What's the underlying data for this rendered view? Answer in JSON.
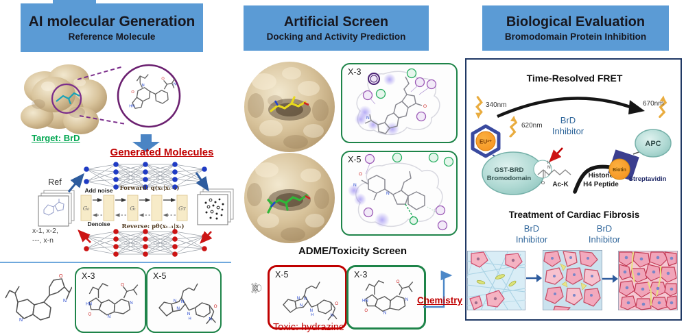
{
  "colors": {
    "header_bg": "#5B9BD5",
    "accent_red": "#C00000",
    "accent_green": "#00A650",
    "accent_blue": "#31679B",
    "box_green": "#1E8449"
  },
  "panels": {
    "left": {
      "title": "AI molecular Generation",
      "subtitle": "Reference Molecule",
      "target_label": "Target: BrD",
      "generated_label": "Generated Molecules",
      "diffusion": {
        "ref_label": "Ref",
        "input_seq_line1": "x-1, x-2,",
        "input_seq_line2": "---, x-n",
        "add_noise": "Add noise",
        "denoise": "Denoise",
        "forward": "Forward: q(xₜ|xₜ₋₁)",
        "reverse": "Reverse: pθ(xₜ₋₁|xₜ)",
        "g_labels": [
          "G₀",
          "Gₜ",
          "Gᴛ"
        ]
      },
      "candidates": [
        {
          "label": "X-3"
        },
        {
          "label": "X-5"
        }
      ]
    },
    "middle": {
      "title": "Artificial Screen",
      "subtitle": "Docking and Activity Prediction",
      "interactions": [
        {
          "label": "X-3"
        },
        {
          "label": "X-5"
        }
      ],
      "adme_title": "ADME/Toxicity Screen",
      "toxic": {
        "label": "X-5",
        "note": "Toxic: hydrazine"
      },
      "passed": {
        "label": "X-3"
      },
      "chemistry_label": "Chemistry"
    },
    "right": {
      "title": "Biological Evaluation",
      "subtitle": "Bromodomain Protein Inhibition",
      "fret": {
        "title": "Time-Resolved FRET",
        "excitation": "340nm",
        "donor_emission": "620nm",
        "acceptor_emission": "670nm",
        "europium": "EU³⁺",
        "gst_line1": "GST-BRD",
        "gst_line2": "Bromodomain",
        "inhibitor_label": "BrD\nInhibitor",
        "ack": "Ac-K",
        "histone_line1": "Histone",
        "histone_line2": "H4 Peptide",
        "biotin": "Biotin",
        "streptavidin": "Streptavidin",
        "apc": "APC"
      },
      "fibrosis": {
        "title": "Treatment of Cardiac Fibrosis",
        "inhibitor_label_1": "BrD\nInhibitor",
        "inhibitor_label_2": "BrD\nInhibitor"
      }
    }
  }
}
